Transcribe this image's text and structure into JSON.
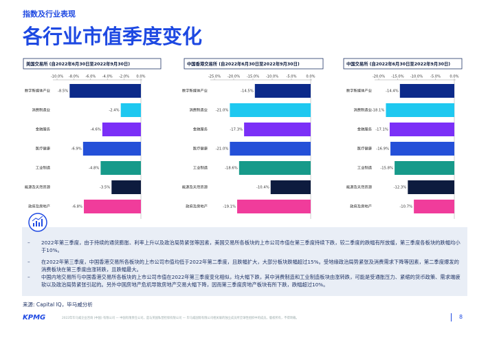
{
  "header": {
    "section": "指数及行业表现",
    "title": "各行业市值季度变化"
  },
  "chart_data": [
    {
      "type": "bar",
      "orientation": "horizontal",
      "title": "美国交易所 (自2022年6月30日至2022年9月30日)",
      "categories": [
        "数字新媒体产业",
        "消费制造业",
        "金融服务",
        "医疗健康",
        "工业制造",
        "能源及天然资源",
        "政府及房地产"
      ],
      "values": [
        -8.5,
        -2.4,
        -4.6,
        -6.9,
        -4.8,
        -3.5,
        -6.8
      ],
      "value_labels": [
        "-8.5%",
        "-2.4%",
        "-4.6%",
        "-6.9%",
        "-4.8%",
        "-3.5%",
        "-6.8%"
      ],
      "colors": [
        "#0c2a8a",
        "#1ec8f0",
        "#7b2ff7",
        "#2450d8",
        "#179a8a",
        "#0d1b3e",
        "#f03c9b"
      ],
      "xlim": [
        -10,
        0
      ],
      "xticks": [
        {
          "value": -10,
          "label": "-10.0%"
        },
        {
          "value": -8,
          "label": "-8.0%"
        },
        {
          "value": -6,
          "label": "-6.0%"
        },
        {
          "value": -4,
          "label": "-4.0%"
        },
        {
          "value": -2,
          "label": "-2.0%"
        },
        {
          "value": 0,
          "label": "0.0%"
        }
      ]
    },
    {
      "type": "bar",
      "orientation": "horizontal",
      "title": "中国香港交易所 (自2022年6月30日至2022年9月30日)",
      "categories": [
        "数字新媒体产业",
        "消费制造业",
        "金融服务",
        "医疗健康",
        "工业制造",
        "能源及天然资源",
        "政府及房地产"
      ],
      "values": [
        -14.5,
        -21.0,
        -17.3,
        -21.0,
        -18.6,
        -10.4,
        -19.1
      ],
      "value_labels": [
        "-14.5%",
        "-21.0%",
        "-17.3%",
        "-21.0%",
        "-18.6%",
        "-10.4%",
        "-19.1%"
      ],
      "colors": [
        "#0c2a8a",
        "#1ec8f0",
        "#7b2ff7",
        "#2450d8",
        "#179a8a",
        "#0d1b3e",
        "#f03c9b"
      ],
      "xlim": [
        -25,
        0
      ],
      "xticks": [
        {
          "value": -25,
          "label": "-25.0%"
        },
        {
          "value": -20,
          "label": "-20.0%"
        },
        {
          "value": -15,
          "label": "-15.0%"
        },
        {
          "value": -10,
          "label": "-10.0%"
        },
        {
          "value": -5,
          "label": "-5.0%"
        },
        {
          "value": 0,
          "label": "0.0%"
        }
      ]
    },
    {
      "type": "bar",
      "orientation": "horizontal",
      "title": "中国交易所 (自2022年6月30日至2022年9月30日)",
      "categories": [
        "数字新媒体产业",
        "消费制造业",
        "金融服务",
        "医疗健康",
        "工业制造",
        "能源及天然资源",
        "政府及房地产"
      ],
      "values": [
        -14.4,
        -18.1,
        -17.1,
        -16.9,
        -15.8,
        -12.3,
        -10.7
      ],
      "value_labels": [
        "-14.4%",
        "-18.1%",
        "-17.1%",
        "-16.9%",
        "-15.8%",
        "-12.3%",
        "-10.7%"
      ],
      "colors": [
        "#0c2a8a",
        "#1ec8f0",
        "#7b2ff7",
        "#2450d8",
        "#179a8a",
        "#0d1b3e",
        "#f03c9b"
      ],
      "xlim": [
        -20,
        0
      ],
      "xticks": [
        {
          "value": -20,
          "label": "-20.0%"
        },
        {
          "value": -15,
          "label": "-15.0%"
        },
        {
          "value": -10,
          "label": "-10.0%"
        },
        {
          "value": -5,
          "label": "-5.0%"
        },
        {
          "value": 0,
          "label": "0.0%"
        }
      ]
    }
  ],
  "bullets": [
    "2022年第三季度，由于持续的通货膨胀、利率上升以及政治局势紧张等因素，美国交易所各板块的上市公司市值在第三季度持续下跌，较二季度的跌幅有所放缓，第三季度各板块的跌幅均小于10%。",
    "在2022年第三季度，中国香港交易所各板块的上市公司市值均低于2022年第二季度，且跌幅扩大，大部分板块跌幅超过15%。受地缘政治局势紧张及消费需求下降等因素，第二季度爆发的消费板块在第三季度由涨转跌，且跌幅最大。",
    "中国内地交易所与中国香港交易所各板块的上市公司市值在2022年第三季度变化相似，均大幅下跌，其中消费制造和工业制造板块由涨转跌，可能是受通胀压力、紧缩的货币政策、需求端疲软以及政治局势紧张引起的。另外中国房地产危机导致房地产交易大幅下降，因而第三季度房地产板块有所下跌，跌幅超过10%。"
  ],
  "source": "来源: Capital IQ，毕马威分析",
  "footer": {
    "logo": "KPMG",
    "legal": "2022年毕马威企业咨询 (中国) 有限公司 — 中国有限责任公司，是与英国私营担保有限公司 — 毕马威国际有限公司相关联的独立成员所全球性组织中的成员。版权所有，不得转载。",
    "page": "8"
  }
}
